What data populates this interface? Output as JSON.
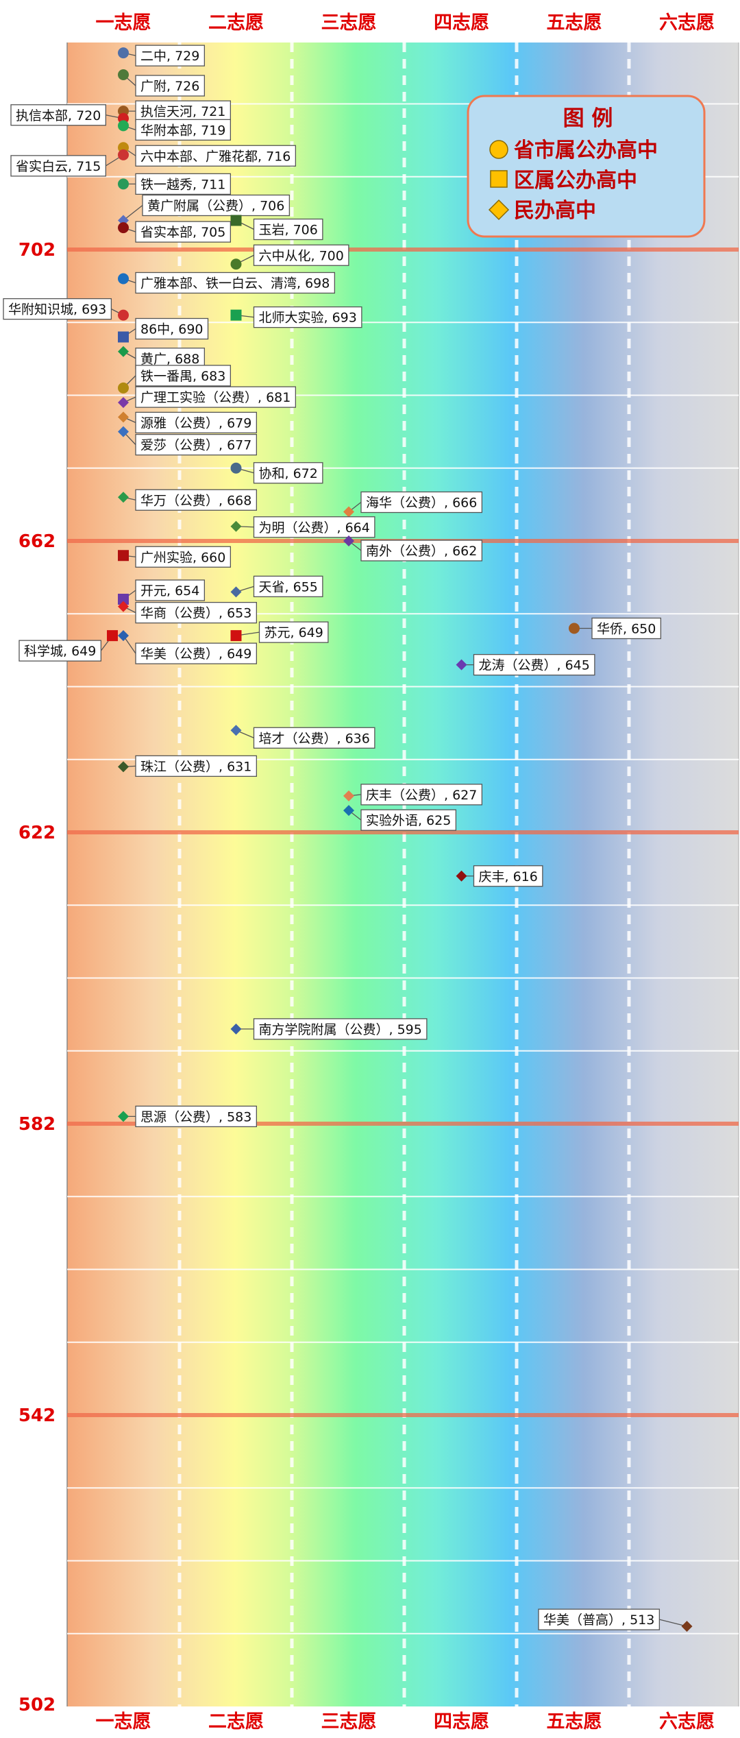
{
  "chart_data": {
    "type": "scatter",
    "categories": [
      "一志愿",
      "二志愿",
      "三志愿",
      "四志愿",
      "五志愿",
      "六志愿"
    ],
    "ylim": [
      502,
      743
    ],
    "yticks": [
      702,
      662,
      622,
      582,
      542,
      502
    ],
    "grid": true,
    "legend": {
      "title": "图 例",
      "position": "top-right",
      "items": [
        {
          "shape": "circle",
          "label": "省市属公办高中"
        },
        {
          "shape": "square",
          "label": "区属公办高中"
        },
        {
          "shape": "diamond",
          "label": "民办高中"
        }
      ]
    },
    "points": [
      {
        "label": "二中, 729",
        "x": 1,
        "y": 729,
        "shape": "circle",
        "color": "#4f6fa8"
      },
      {
        "label": "广附, 726",
        "x": 1,
        "y": 726,
        "shape": "circle",
        "color": "#4f7a3a"
      },
      {
        "label": "执信天河, 721",
        "x": 1,
        "y": 721,
        "shape": "circle",
        "color": "#9a5a20"
      },
      {
        "label": "执信本部, 720",
        "x": 1,
        "y": 720,
        "shape": "circle",
        "color": "#d02020"
      },
      {
        "label": "华附本部, 719",
        "x": 1,
        "y": 719,
        "shape": "circle",
        "color": "#22aa55"
      },
      {
        "label": "六中本部、广雅花都, 716",
        "x": 1,
        "y": 716,
        "shape": "circle",
        "color": "#c08a10"
      },
      {
        "label": "省实白云, 715",
        "x": 1,
        "y": 715,
        "shape": "circle",
        "color": "#cc3333"
      },
      {
        "label": "铁一越秀, 711",
        "x": 1,
        "y": 711,
        "shape": "circle",
        "color": "#2a9a5a"
      },
      {
        "label": "黄广附属（公费）, 706",
        "x": 1,
        "y": 706,
        "shape": "diamond",
        "color": "#5a6fc0"
      },
      {
        "label": "玉岩, 706",
        "x": 2,
        "y": 706,
        "shape": "square",
        "color": "#3a6a2a"
      },
      {
        "label": "省实本部, 705",
        "x": 1,
        "y": 705,
        "shape": "circle",
        "color": "#8a1010"
      },
      {
        "label": "六中从化, 700",
        "x": 2,
        "y": 700,
        "shape": "circle",
        "color": "#4a7a2a"
      },
      {
        "label": "广雅本部、铁一白云、清湾, 698",
        "x": 1,
        "y": 698,
        "shape": "circle",
        "color": "#1a6fc0"
      },
      {
        "label": "华附知识城, 693",
        "x": 1,
        "y": 693,
        "shape": "circle",
        "color": "#d03030"
      },
      {
        "label": "北师大实验, 693",
        "x": 2,
        "y": 693,
        "shape": "square",
        "color": "#1aa050"
      },
      {
        "label": "86中, 690",
        "x": 1,
        "y": 690,
        "shape": "square",
        "color": "#3a5aa8"
      },
      {
        "label": "黄广, 688",
        "x": 1,
        "y": 688,
        "shape": "diamond",
        "color": "#1a9a4a"
      },
      {
        "label": "铁一番禺, 683",
        "x": 1,
        "y": 683,
        "shape": "circle",
        "color": "#b08a10"
      },
      {
        "label": "广理工实验（公费）, 681",
        "x": 1,
        "y": 681,
        "shape": "diamond",
        "color": "#7a3aa8"
      },
      {
        "label": "源雅（公费）, 679",
        "x": 1,
        "y": 679,
        "shape": "diamond",
        "color": "#d08030"
      },
      {
        "label": "爱莎（公费）, 677",
        "x": 1,
        "y": 677,
        "shape": "diamond",
        "color": "#3a70c0"
      },
      {
        "label": "协和, 672",
        "x": 2,
        "y": 672,
        "shape": "circle",
        "color": "#4a6a8a"
      },
      {
        "label": "华万（公费）, 668",
        "x": 1,
        "y": 668,
        "shape": "diamond",
        "color": "#2a9a4a"
      },
      {
        "label": "海华（公费）, 666",
        "x": 3,
        "y": 666,
        "shape": "diamond",
        "color": "#e08040"
      },
      {
        "label": "为明（公费）, 664",
        "x": 2,
        "y": 664,
        "shape": "diamond",
        "color": "#4a8a3a"
      },
      {
        "label": "南外（公费）, 662",
        "x": 3,
        "y": 662,
        "shape": "diamond",
        "color": "#6a3aa0"
      },
      {
        "label": "广州实验, 660",
        "x": 1,
        "y": 660,
        "shape": "square",
        "color": "#b01010"
      },
      {
        "label": "天省, 655",
        "x": 2,
        "y": 655,
        "shape": "diamond",
        "color": "#4a6aa0"
      },
      {
        "label": "开元, 654",
        "x": 1,
        "y": 654,
        "shape": "square",
        "color": "#6a3aa8"
      },
      {
        "label": "华商（公费）, 653",
        "x": 1,
        "y": 653,
        "shape": "diamond",
        "color": "#e02020"
      },
      {
        "label": "华侨, 650",
        "x": 5,
        "y": 650,
        "shape": "circle",
        "color": "#a05a20"
      },
      {
        "label": "科学城, 649",
        "x": 1,
        "y": 649,
        "shape": "square",
        "color": "#d01010"
      },
      {
        "label": "华美（公费）, 649",
        "x": 1,
        "y": 649,
        "shape": "diamond",
        "color": "#2a60b0"
      },
      {
        "label": "苏元, 649",
        "x": 2,
        "y": 649,
        "shape": "square",
        "color": "#d01010"
      },
      {
        "label": "龙涛（公费）, 645",
        "x": 4,
        "y": 645,
        "shape": "diamond",
        "color": "#6a3ab0"
      },
      {
        "label": "培才（公费）, 636",
        "x": 2,
        "y": 636,
        "shape": "diamond",
        "color": "#4a70b0"
      },
      {
        "label": "珠江（公费）, 631",
        "x": 1,
        "y": 631,
        "shape": "diamond",
        "color": "#3a5a2a"
      },
      {
        "label": "庆丰（公费）, 627",
        "x": 3,
        "y": 627,
        "shape": "diamond",
        "color": "#e08050"
      },
      {
        "label": "实验外语, 625",
        "x": 3,
        "y": 625,
        "shape": "diamond",
        "color": "#1a70b0"
      },
      {
        "label": "庆丰, 616",
        "x": 4,
        "y": 616,
        "shape": "diamond",
        "color": "#901010"
      },
      {
        "label": "南方学院附属（公费）, 595",
        "x": 2,
        "y": 595,
        "shape": "diamond",
        "color": "#3a60a8"
      },
      {
        "label": "思源（公费）, 583",
        "x": 1,
        "y": 583,
        "shape": "diamond",
        "color": "#1aa050"
      },
      {
        "label": "华美（普高）, 513",
        "x": 6,
        "y": 513,
        "shape": "diamond",
        "color": "#7a3a1a"
      }
    ]
  }
}
